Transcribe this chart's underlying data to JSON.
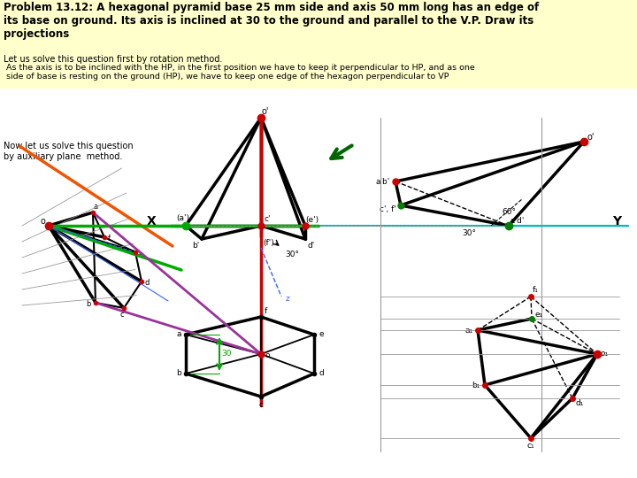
{
  "title_text": "Problem 13.12: A hexagonal pyramid base 25 mm side and axis 50 mm long has an edge of\nits base on ground. Its axis is inclined at 30 to the ground and parallel to the V.P. Draw its\nprojections",
  "sub1": "Let us solve this question first by rotation method.",
  "sub2": " As the axis is to be inclined with the HP, in the first position we have to keep it perpendicular to HP, and as one\n side of base is resting on the ground (HP), we have to keep one edge of the hexagon perpendicular to VP",
  "sub3": "Now let us solve this question\nby auxiliary plane  method.",
  "bg": "#ffffcc",
  "white": "#ffffff",
  "black": "#000000",
  "red": "#cc0000",
  "green": "#00aa00",
  "dkgreen": "#006600",
  "cyan": "#00bbbb",
  "orange": "#ee5500",
  "purple": "#993399",
  "gray": "#999999",
  "blue": "#3366ff",
  "lw": 1.8,
  "lw_thick": 2.5,
  "figsize": [
    7.2,
    5.4
  ],
  "dpi": 100
}
